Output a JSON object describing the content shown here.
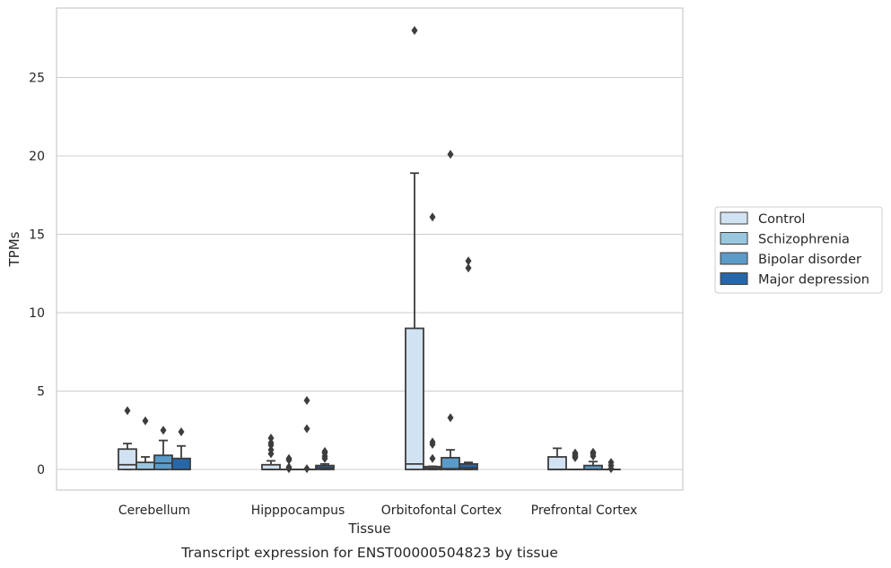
{
  "chart_data": {
    "type": "box",
    "xlabel": "Tissue",
    "ylabel": "TPMs",
    "caption": "Transcript expression for ENST00000504823 by tissue",
    "ylim": [
      -1.35,
      29.0
    ],
    "yticks": [
      0,
      5,
      10,
      15,
      20,
      25
    ],
    "ytick_labels": [
      "0",
      "5",
      "10",
      "15",
      "20",
      "25"
    ],
    "grid": "horizontal",
    "legend_position": "right",
    "categories": [
      "Cerebellum",
      "Hipppocampus",
      "Orbitofontal Cortex",
      "Prefrontal Cortex"
    ],
    "series": [
      {
        "name": "Control",
        "color": "#d1e2f2",
        "boxes": [
          {
            "whislo": 0,
            "q1": 0,
            "med": 0.3,
            "q3": 1.3,
            "whishi": 1.65,
            "fliers": [
              3.75
            ]
          },
          {
            "whislo": 0,
            "q1": 0,
            "med": 0,
            "q3": 0.3,
            "whishi": 0.55,
            "fliers": [
              1.0,
              1.25,
              1.55,
              1.7,
              2.0
            ]
          },
          {
            "whislo": 0,
            "q1": 0,
            "med": 0.35,
            "q3": 9.0,
            "whishi": 18.9,
            "fliers": [
              28.0
            ]
          },
          {
            "whislo": 0,
            "q1": 0,
            "med": 0,
            "q3": 0.8,
            "whishi": 1.35,
            "fliers": []
          }
        ]
      },
      {
        "name": "Schizophrenia",
        "color": "#9ac7e0",
        "boxes": [
          {
            "whislo": 0,
            "q1": 0,
            "med": 0,
            "q3": 0.45,
            "whishi": 0.8,
            "fliers": [
              3.1
            ]
          },
          {
            "whislo": 0,
            "q1": 0,
            "med": 0,
            "q3": 0,
            "whishi": 0,
            "fliers": [
              0.05,
              0.15,
              0.6,
              0.7
            ]
          },
          {
            "whislo": 0,
            "q1": 0,
            "med": 0.08,
            "q3": 0.18,
            "whishi": 0.2,
            "fliers": [
              0.7,
              1.6,
              1.75,
              16.1
            ]
          },
          {
            "whislo": 0,
            "q1": 0,
            "med": 0,
            "q3": 0,
            "whishi": 0,
            "fliers": [
              0.75,
              0.85,
              0.95,
              1.05
            ]
          }
        ]
      },
      {
        "name": "Bipolar disorder",
        "color": "#5a9bc9",
        "boxes": [
          {
            "whislo": 0,
            "q1": 0,
            "med": 0.4,
            "q3": 0.9,
            "whishi": 1.85,
            "fliers": [
              2.5
            ]
          },
          {
            "whislo": 0,
            "q1": 0,
            "med": 0,
            "q3": 0,
            "whishi": 0,
            "fliers": [
              0.05,
              2.6,
              4.4
            ]
          },
          {
            "whislo": 0,
            "q1": 0,
            "med": 0.05,
            "q3": 0.75,
            "whishi": 1.25,
            "fliers": [
              3.3,
              20.1
            ]
          },
          {
            "whislo": 0,
            "q1": 0,
            "med": 0,
            "q3": 0.25,
            "whishi": 0.5,
            "fliers": [
              0.85,
              1.0,
              1.1
            ]
          }
        ]
      },
      {
        "name": "Major depression",
        "color": "#2767a8",
        "boxes": [
          {
            "whislo": 0,
            "q1": 0,
            "med": 0,
            "q3": 0.7,
            "whishi": 1.5,
            "fliers": [
              2.4
            ]
          },
          {
            "whislo": 0,
            "q1": 0,
            "med": 0.1,
            "q3": 0.25,
            "whishi": 0.35,
            "fliers": [
              0.7,
              0.85,
              1.05,
              1.15
            ]
          },
          {
            "whislo": 0,
            "q1": 0,
            "med": 0.1,
            "q3": 0.35,
            "whishi": 0.45,
            "fliers": [
              12.85,
              13.3
            ]
          },
          {
            "whislo": 0,
            "q1": 0,
            "med": 0,
            "q3": 0,
            "whishi": 0,
            "fliers": [
              0.05,
              0.25,
              0.45
            ]
          }
        ]
      }
    ]
  }
}
